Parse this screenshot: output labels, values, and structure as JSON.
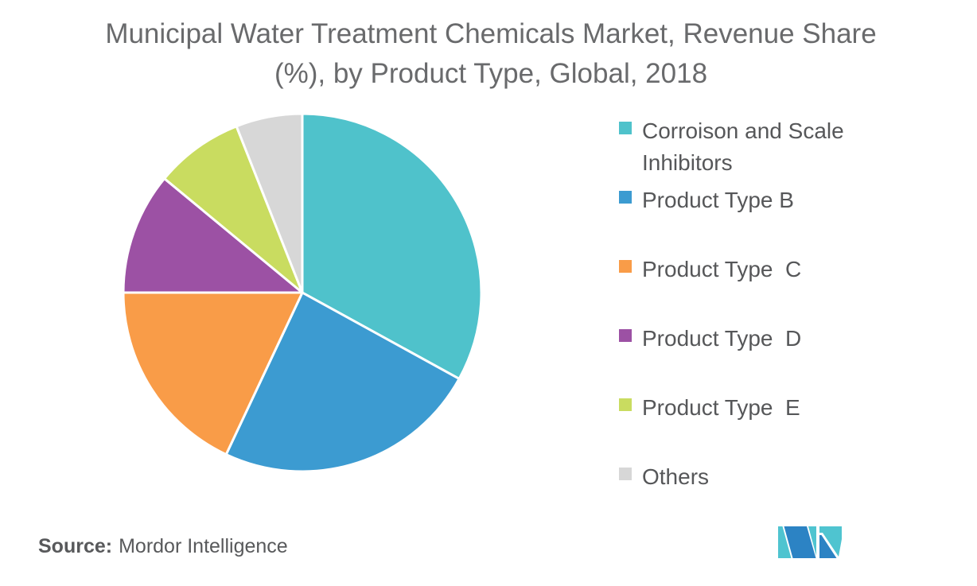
{
  "title": "Municipal Water Treatment Chemicals Market, Revenue Share (%), by Product Type, Global, 2018",
  "chart_data": {
    "type": "pie",
    "title": "Municipal Water Treatment Chemicals Market, Revenue Share (%), by Product Type, Global, 2018",
    "ylabel": "Revenue Share (%)",
    "categories": [
      "Corroison and Scale Inhibitors",
      "Product Type B",
      "Product Type  C",
      "Product Type  D",
      "Product Type  E",
      "Others"
    ],
    "values": [
      33,
      24,
      18,
      11,
      8,
      6
    ],
    "colors": [
      "#4fc2cb",
      "#3c9bd1",
      "#f99c48",
      "#9c51a4",
      "#c9dc60",
      "#d7d7d7"
    ],
    "start_angle": "top",
    "direction": "clockwise",
    "slice_border_color": "#ffffff",
    "legend_position": "right"
  },
  "source": {
    "label": "Source:",
    "value": "Mordor Intelligence"
  },
  "logo": {
    "teal": "#4fc4d0",
    "blue": "#2c83c4"
  }
}
